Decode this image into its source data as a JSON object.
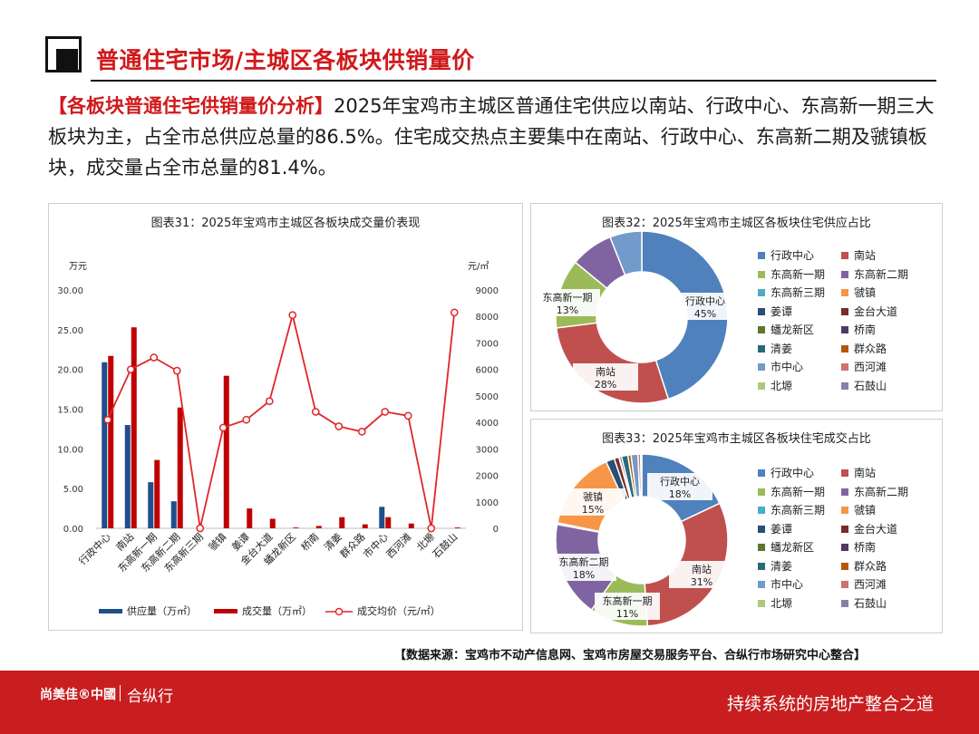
{
  "header": {
    "title": "普通住宅市场/主城区各板块供销量价"
  },
  "summary": {
    "lead": "【各板块普通住宅供销量价分析】",
    "body": "2025年宝鸡市主城区普通住宅供应以南站、行政中心、东高新一期三大板块为主，占全市总供应总量的86.5%。住宅成交热点主要集中在南站、行政中心、东高新二期及虢镇板块，成交量占全市总量的81.4%。"
  },
  "colors": {
    "supply": "#1f4e8c",
    "sales": "#c00000",
    "price": "#e0262b",
    "slices": [
      "#4f81bd",
      "#c0504d",
      "#9bbb59",
      "#8064a2",
      "#4bacc6",
      "#f79646",
      "#2c4d75",
      "#772c2a",
      "#5f7530",
      "#4d3b62",
      "#276a7c",
      "#b65708",
      "#729aca",
      "#cd7371",
      "#afc97a",
      "#8d7ea8"
    ]
  },
  "chart_data": [
    {
      "type": "bar",
      "title": "图表31：2025年宝鸡市主城区各板块成交量价表现",
      "y_left_unit": "万元",
      "y_right_unit": "元/㎡",
      "ylim": [
        0,
        30
      ],
      "y_right_lim": [
        0,
        9000
      ],
      "y_ticks": [
        "0.00",
        "5.00",
        "10.00",
        "15.00",
        "20.00",
        "25.00",
        "30.00"
      ],
      "y_right_ticks": [
        "0",
        "1000",
        "2000",
        "3000",
        "4000",
        "5000",
        "6000",
        "7000",
        "8000",
        "9000"
      ],
      "categories": [
        "行政中心",
        "南站",
        "东高新一期",
        "东高新二期",
        "东高新三期",
        "虢镇",
        "姜谭",
        "金台大道",
        "蟠龙新区",
        "桥南",
        "清姜",
        "群众路",
        "市中心",
        "西河滩",
        "北塬",
        "石鼓山"
      ],
      "series": [
        {
          "name": "供应量（万㎡）",
          "type": "bar",
          "axis": "left",
          "values": [
            20.9,
            13.0,
            5.8,
            3.4,
            0,
            0,
            0,
            0,
            0,
            0,
            0,
            0,
            2.7,
            0,
            0,
            0
          ]
        },
        {
          "name": "成交量（万㎡）",
          "type": "bar",
          "axis": "left",
          "values": [
            21.7,
            25.3,
            8.6,
            15.2,
            0,
            19.2,
            2.5,
            1.2,
            0.1,
            0.3,
            1.4,
            0.5,
            1.4,
            0.6,
            0,
            0.1
          ]
        },
        {
          "name": "成交均价（元/㎡）",
          "type": "line",
          "axis": "right",
          "values": [
            4100,
            6000,
            6450,
            5950,
            0,
            3800,
            4100,
            4800,
            8050,
            4400,
            3850,
            3650,
            4400,
            4250,
            0,
            8150
          ]
        }
      ],
      "legend_position": "bottom"
    },
    {
      "type": "pie",
      "title": "图表32：2025年宝鸡市主城区各板块住宅供应占比",
      "labels": [
        "行政中心",
        "南站",
        "东高新一期",
        "东高新二期",
        "东高新三期",
        "虢镇",
        "姜谭",
        "金台大道",
        "蟠龙新区",
        "桥南",
        "清姜",
        "群众路",
        "市中心",
        "西河滩",
        "北塬",
        "石鼓山"
      ],
      "values": [
        45,
        28,
        13,
        8,
        0,
        0,
        0,
        0,
        0,
        0,
        0,
        0,
        6,
        0,
        0,
        0
      ],
      "data_labels": [
        {
          "label": "行政中心",
          "percent": "45%"
        },
        {
          "label": "南站",
          "percent": "28%"
        },
        {
          "label": "东高新一期",
          "percent": "13%"
        }
      ],
      "legend_position": "right"
    },
    {
      "type": "pie",
      "title": "图表33：2025年宝鸡市主城区各板块住宅成交占比",
      "labels": [
        "行政中心",
        "南站",
        "东高新一期",
        "东高新二期",
        "东高新三期",
        "虢镇",
        "姜谭",
        "金台大道",
        "蟠龙新区",
        "桥南",
        "清姜",
        "群众路",
        "市中心",
        "西河滩",
        "北塬",
        "石鼓山"
      ],
      "values": [
        18,
        31,
        11,
        18,
        0.3,
        15,
        1.6,
        0.9,
        0.1,
        0.4,
        1.2,
        0.6,
        1.3,
        0.5,
        0.1,
        0.1
      ],
      "data_labels": [
        {
          "label": "行政中心",
          "percent": "18%"
        },
        {
          "label": "南站",
          "percent": "31%"
        },
        {
          "label": "东高新一期",
          "percent": "11%"
        },
        {
          "label": "东高新二期",
          "percent": "18%"
        },
        {
          "label": "虢镇",
          "percent": "15%"
        }
      ],
      "legend_position": "right"
    }
  ],
  "source": "【数据来源：宝鸡市不动产信息网、宝鸡市房屋交易服务平台、合纵行市场研究中心整合】",
  "footer": {
    "brand_main": "尚美佳®中國",
    "brand_partner": "合纵行",
    "slogan": "持续系统的房地产整合之道"
  }
}
